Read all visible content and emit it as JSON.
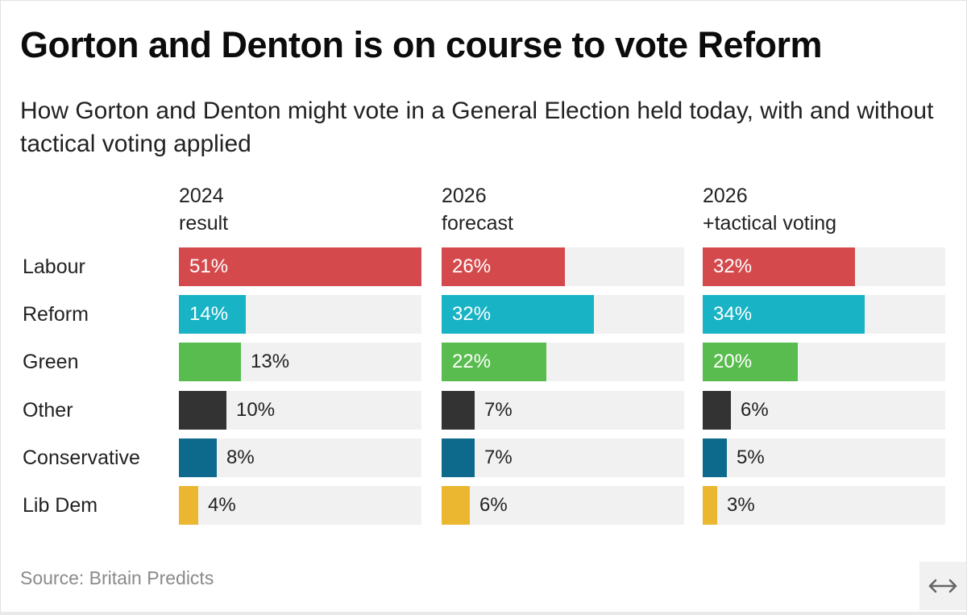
{
  "title": "Gorton and Denton is on course to vote Reform",
  "subtitle": "How Gorton and Denton might vote in a General Election held today, with and without tactical voting applied",
  "source": "Source: Britain Predicts",
  "expand_icon": "↔",
  "chart_data": {
    "type": "bar",
    "orientation": "horizontal",
    "title": "Gorton and Denton is on course to vote Reform",
    "subtitle": "How Gorton and Denton might vote in a General Election held today, with and without tactical voting applied",
    "categories": [
      "Labour",
      "Reform",
      "Green",
      "Other",
      "Conservative",
      "Lib Dem"
    ],
    "colors": [
      "#d44a4c",
      "#18b3c4",
      "#58bd4e",
      "#333333",
      "#0d6a8c",
      "#ebb730"
    ],
    "track_color": "#f1f1f1",
    "xlim": [
      0,
      51
    ],
    "series": [
      {
        "name": "2024 result",
        "head": [
          "2024",
          "result"
        ],
        "values": [
          51,
          14,
          13,
          10,
          8,
          4
        ],
        "labels": [
          "51%",
          "14%",
          "13%",
          "10%",
          "8%",
          "4%"
        ]
      },
      {
        "name": "2026 forecast",
        "head": [
          "2026",
          "forecast"
        ],
        "values": [
          26,
          32,
          22,
          7,
          7,
          6
        ],
        "labels": [
          "26%",
          "32%",
          "22%",
          "7%",
          "7%",
          "6%"
        ]
      },
      {
        "name": "2026 +tactical voting",
        "head": [
          "2026",
          "+tactical voting"
        ],
        "values": [
          32,
          34,
          20,
          6,
          5,
          3
        ],
        "labels": [
          "32%",
          "34%",
          "20%",
          "6%",
          "5%",
          "3%"
        ]
      }
    ],
    "source": "Source: Britain Predicts"
  }
}
